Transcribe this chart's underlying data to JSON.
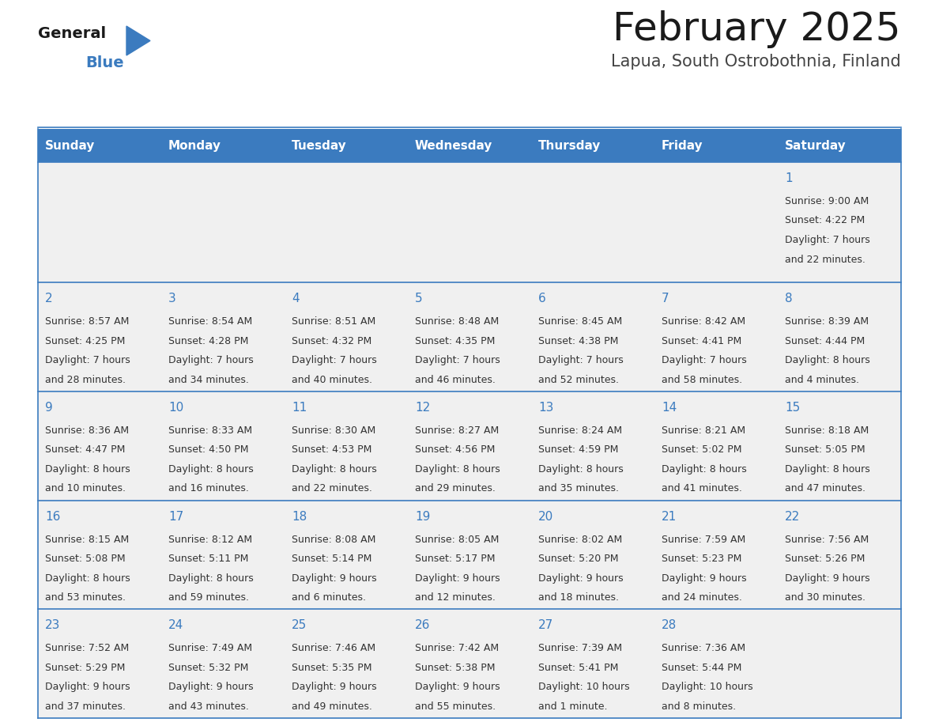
{
  "title": "February 2025",
  "subtitle": "Lapua, South Ostrobothnia, Finland",
  "header_bg_color": "#3B7BBF",
  "header_text_color": "#FFFFFF",
  "cell_bg": "#F0F0F0",
  "cell_text_color": "#333333",
  "day_num_color": "#3B7BBF",
  "border_color": "#3B7BBF",
  "weekdays": [
    "Sunday",
    "Monday",
    "Tuesday",
    "Wednesday",
    "Thursday",
    "Friday",
    "Saturday"
  ],
  "days": [
    {
      "day": 1,
      "col": 6,
      "row": 0,
      "sunrise": "9:00 AM",
      "sunset": "4:22 PM",
      "daylight_line1": "Daylight: 7 hours",
      "daylight_line2": "and 22 minutes."
    },
    {
      "day": 2,
      "col": 0,
      "row": 1,
      "sunrise": "8:57 AM",
      "sunset": "4:25 PM",
      "daylight_line1": "Daylight: 7 hours",
      "daylight_line2": "and 28 minutes."
    },
    {
      "day": 3,
      "col": 1,
      "row": 1,
      "sunrise": "8:54 AM",
      "sunset": "4:28 PM",
      "daylight_line1": "Daylight: 7 hours",
      "daylight_line2": "and 34 minutes."
    },
    {
      "day": 4,
      "col": 2,
      "row": 1,
      "sunrise": "8:51 AM",
      "sunset": "4:32 PM",
      "daylight_line1": "Daylight: 7 hours",
      "daylight_line2": "and 40 minutes."
    },
    {
      "day": 5,
      "col": 3,
      "row": 1,
      "sunrise": "8:48 AM",
      "sunset": "4:35 PM",
      "daylight_line1": "Daylight: 7 hours",
      "daylight_line2": "and 46 minutes."
    },
    {
      "day": 6,
      "col": 4,
      "row": 1,
      "sunrise": "8:45 AM",
      "sunset": "4:38 PM",
      "daylight_line1": "Daylight: 7 hours",
      "daylight_line2": "and 52 minutes."
    },
    {
      "day": 7,
      "col": 5,
      "row": 1,
      "sunrise": "8:42 AM",
      "sunset": "4:41 PM",
      "daylight_line1": "Daylight: 7 hours",
      "daylight_line2": "and 58 minutes."
    },
    {
      "day": 8,
      "col": 6,
      "row": 1,
      "sunrise": "8:39 AM",
      "sunset": "4:44 PM",
      "daylight_line1": "Daylight: 8 hours",
      "daylight_line2": "and 4 minutes."
    },
    {
      "day": 9,
      "col": 0,
      "row": 2,
      "sunrise": "8:36 AM",
      "sunset": "4:47 PM",
      "daylight_line1": "Daylight: 8 hours",
      "daylight_line2": "and 10 minutes."
    },
    {
      "day": 10,
      "col": 1,
      "row": 2,
      "sunrise": "8:33 AM",
      "sunset": "4:50 PM",
      "daylight_line1": "Daylight: 8 hours",
      "daylight_line2": "and 16 minutes."
    },
    {
      "day": 11,
      "col": 2,
      "row": 2,
      "sunrise": "8:30 AM",
      "sunset": "4:53 PM",
      "daylight_line1": "Daylight: 8 hours",
      "daylight_line2": "and 22 minutes."
    },
    {
      "day": 12,
      "col": 3,
      "row": 2,
      "sunrise": "8:27 AM",
      "sunset": "4:56 PM",
      "daylight_line1": "Daylight: 8 hours",
      "daylight_line2": "and 29 minutes."
    },
    {
      "day": 13,
      "col": 4,
      "row": 2,
      "sunrise": "8:24 AM",
      "sunset": "4:59 PM",
      "daylight_line1": "Daylight: 8 hours",
      "daylight_line2": "and 35 minutes."
    },
    {
      "day": 14,
      "col": 5,
      "row": 2,
      "sunrise": "8:21 AM",
      "sunset": "5:02 PM",
      "daylight_line1": "Daylight: 8 hours",
      "daylight_line2": "and 41 minutes."
    },
    {
      "day": 15,
      "col": 6,
      "row": 2,
      "sunrise": "8:18 AM",
      "sunset": "5:05 PM",
      "daylight_line1": "Daylight: 8 hours",
      "daylight_line2": "and 47 minutes."
    },
    {
      "day": 16,
      "col": 0,
      "row": 3,
      "sunrise": "8:15 AM",
      "sunset": "5:08 PM",
      "daylight_line1": "Daylight: 8 hours",
      "daylight_line2": "and 53 minutes."
    },
    {
      "day": 17,
      "col": 1,
      "row": 3,
      "sunrise": "8:12 AM",
      "sunset": "5:11 PM",
      "daylight_line1": "Daylight: 8 hours",
      "daylight_line2": "and 59 minutes."
    },
    {
      "day": 18,
      "col": 2,
      "row": 3,
      "sunrise": "8:08 AM",
      "sunset": "5:14 PM",
      "daylight_line1": "Daylight: 9 hours",
      "daylight_line2": "and 6 minutes."
    },
    {
      "day": 19,
      "col": 3,
      "row": 3,
      "sunrise": "8:05 AM",
      "sunset": "5:17 PM",
      "daylight_line1": "Daylight: 9 hours",
      "daylight_line2": "and 12 minutes."
    },
    {
      "day": 20,
      "col": 4,
      "row": 3,
      "sunrise": "8:02 AM",
      "sunset": "5:20 PM",
      "daylight_line1": "Daylight: 9 hours",
      "daylight_line2": "and 18 minutes."
    },
    {
      "day": 21,
      "col": 5,
      "row": 3,
      "sunrise": "7:59 AM",
      "sunset": "5:23 PM",
      "daylight_line1": "Daylight: 9 hours",
      "daylight_line2": "and 24 minutes."
    },
    {
      "day": 22,
      "col": 6,
      "row": 3,
      "sunrise": "7:56 AM",
      "sunset": "5:26 PM",
      "daylight_line1": "Daylight: 9 hours",
      "daylight_line2": "and 30 minutes."
    },
    {
      "day": 23,
      "col": 0,
      "row": 4,
      "sunrise": "7:52 AM",
      "sunset": "5:29 PM",
      "daylight_line1": "Daylight: 9 hours",
      "daylight_line2": "and 37 minutes."
    },
    {
      "day": 24,
      "col": 1,
      "row": 4,
      "sunrise": "7:49 AM",
      "sunset": "5:32 PM",
      "daylight_line1": "Daylight: 9 hours",
      "daylight_line2": "and 43 minutes."
    },
    {
      "day": 25,
      "col": 2,
      "row": 4,
      "sunrise": "7:46 AM",
      "sunset": "5:35 PM",
      "daylight_line1": "Daylight: 9 hours",
      "daylight_line2": "and 49 minutes."
    },
    {
      "day": 26,
      "col": 3,
      "row": 4,
      "sunrise": "7:42 AM",
      "sunset": "5:38 PM",
      "daylight_line1": "Daylight: 9 hours",
      "daylight_line2": "and 55 minutes."
    },
    {
      "day": 27,
      "col": 4,
      "row": 4,
      "sunrise": "7:39 AM",
      "sunset": "5:41 PM",
      "daylight_line1": "Daylight: 10 hours",
      "daylight_line2": "and 1 minute."
    },
    {
      "day": 28,
      "col": 5,
      "row": 4,
      "sunrise": "7:36 AM",
      "sunset": "5:44 PM",
      "daylight_line1": "Daylight: 10 hours",
      "daylight_line2": "and 8 minutes."
    }
  ],
  "logo_text_general": "General",
  "logo_text_blue": "Blue",
  "logo_color_general": "#1a1a1a",
  "logo_color_blue": "#3B7BBF",
  "logo_triangle_color": "#3B7BBF",
  "title_fontsize": 36,
  "subtitle_fontsize": 15,
  "header_fontsize": 11,
  "day_num_fontsize": 11,
  "cell_text_fontsize": 9
}
